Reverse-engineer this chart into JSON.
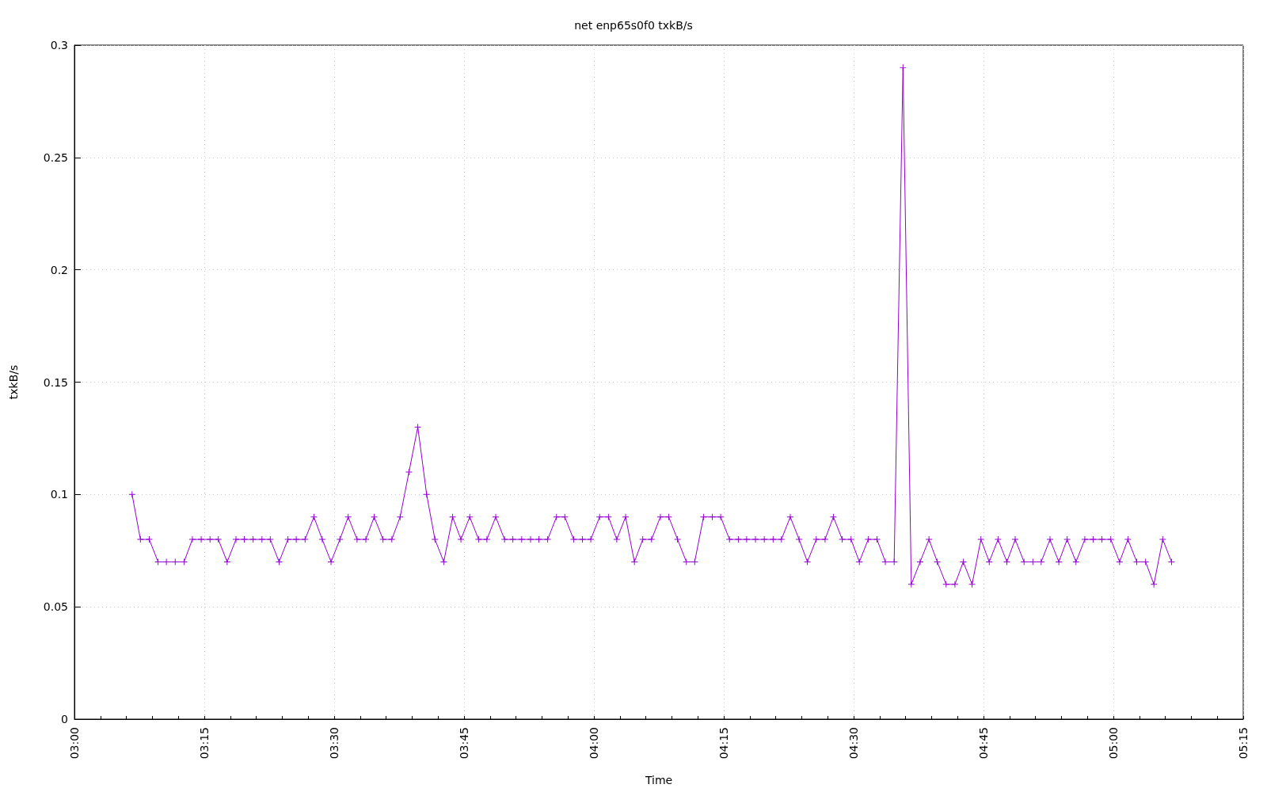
{
  "chart_data": {
    "type": "line",
    "title": "net enp65s0f0 txkB/s",
    "xlabel": "Time",
    "ylabel": "txkB/s",
    "x": [
      3.111,
      3.127,
      3.144,
      3.161,
      3.177,
      3.194,
      3.211,
      3.227,
      3.244,
      3.261,
      3.277,
      3.294,
      3.311,
      3.327,
      3.344,
      3.361,
      3.377,
      3.394,
      3.411,
      3.427,
      3.444,
      3.461,
      3.477,
      3.494,
      3.511,
      3.527,
      3.544,
      3.561,
      3.577,
      3.594,
      3.611,
      3.627,
      3.644,
      3.661,
      3.678,
      3.694,
      3.711,
      3.728,
      3.744,
      3.761,
      3.778,
      3.794,
      3.811,
      3.828,
      3.844,
      3.861,
      3.878,
      3.894,
      3.911,
      3.928,
      3.944,
      3.961,
      3.978,
      3.994,
      4.011,
      4.028,
      4.044,
      4.061,
      4.078,
      4.094,
      4.111,
      4.128,
      4.144,
      4.161,
      4.178,
      4.194,
      4.211,
      4.228,
      4.244,
      4.261,
      4.278,
      4.294,
      4.311,
      4.328,
      4.345,
      4.361,
      4.378,
      4.395,
      4.411,
      4.428,
      4.445,
      4.461,
      4.478,
      4.495,
      4.511,
      4.528,
      4.545,
      4.561,
      4.578,
      4.595,
      4.611,
      4.628,
      4.645,
      4.661,
      4.678,
      4.695,
      4.711,
      4.728,
      4.745,
      4.761,
      4.778,
      4.795,
      4.811,
      4.828,
      4.845,
      4.861,
      4.878,
      4.895,
      4.911,
      4.928,
      4.945,
      4.961,
      4.978,
      4.995,
      5.012,
      5.028,
      5.045,
      5.062,
      5.078,
      5.095,
      5.112
    ],
    "series": [
      {
        "color": "#9400d3",
        "values": [
          0.1,
          0.08,
          0.08,
          0.07,
          0.07,
          0.07,
          0.07,
          0.08,
          0.08,
          0.08,
          0.08,
          0.07,
          0.08,
          0.08,
          0.08,
          0.08,
          0.08,
          0.07,
          0.08,
          0.08,
          0.08,
          0.09,
          0.08,
          0.07,
          0.08,
          0.09,
          0.08,
          0.08,
          0.09,
          0.08,
          0.08,
          0.09,
          0.11,
          0.13,
          0.1,
          0.08,
          0.07,
          0.09,
          0.08,
          0.09,
          0.08,
          0.08,
          0.09,
          0.08,
          0.08,
          0.08,
          0.08,
          0.08,
          0.08,
          0.09,
          0.09,
          0.08,
          0.08,
          0.08,
          0.09,
          0.09,
          0.08,
          0.09,
          0.07,
          0.08,
          0.08,
          0.09,
          0.09,
          0.08,
          0.07,
          0.07,
          0.09,
          0.09,
          0.09,
          0.08,
          0.08,
          0.08,
          0.08,
          0.08,
          0.08,
          0.08,
          0.09,
          0.08,
          0.07,
          0.08,
          0.08,
          0.09,
          0.08,
          0.08,
          0.07,
          0.08,
          0.08,
          0.07,
          0.07,
          0.29,
          0.06,
          0.07,
          0.08,
          0.07,
          0.06,
          0.06,
          0.07,
          0.06,
          0.08,
          0.07,
          0.08,
          0.07,
          0.08,
          0.07,
          0.07,
          0.07,
          0.08,
          0.07,
          0.08,
          0.07,
          0.08,
          0.08,
          0.08,
          0.08,
          0.07,
          0.08,
          0.07,
          0.07,
          0.06,
          0.08,
          0.07
        ]
      }
    ],
    "xlim": [
      3,
      5.25
    ],
    "xticks": [
      {
        "value": 3,
        "label": "03:00"
      },
      {
        "value": 3.05,
        "label": null
      },
      {
        "value": 3.1,
        "label": null
      },
      {
        "value": 3.15,
        "label": null
      },
      {
        "value": 3.2,
        "label": null
      },
      {
        "value": 3.25,
        "label": "03:15"
      },
      {
        "value": 3.3,
        "label": null
      },
      {
        "value": 3.35,
        "label": null
      },
      {
        "value": 3.4,
        "label": null
      },
      {
        "value": 3.45,
        "label": null
      },
      {
        "value": 3.5,
        "label": "03:30"
      },
      {
        "value": 3.55,
        "label": null
      },
      {
        "value": 3.6,
        "label": null
      },
      {
        "value": 3.65,
        "label": null
      },
      {
        "value": 3.7,
        "label": null
      },
      {
        "value": 3.75,
        "label": "03:45"
      },
      {
        "value": 3.8,
        "label": null
      },
      {
        "value": 3.85,
        "label": null
      },
      {
        "value": 3.9,
        "label": null
      },
      {
        "value": 3.95,
        "label": null
      },
      {
        "value": 4,
        "label": "04:00"
      },
      {
        "value": 4.05,
        "label": null
      },
      {
        "value": 4.1,
        "label": null
      },
      {
        "value": 4.15,
        "label": null
      },
      {
        "value": 4.2,
        "label": null
      },
      {
        "value": 4.25,
        "label": "04:15"
      },
      {
        "value": 4.3,
        "label": null
      },
      {
        "value": 4.35,
        "label": null
      },
      {
        "value": 4.4,
        "label": null
      },
      {
        "value": 4.45,
        "label": null
      },
      {
        "value": 4.5,
        "label": "04:30"
      },
      {
        "value": 4.55,
        "label": null
      },
      {
        "value": 4.6,
        "label": null
      },
      {
        "value": 4.65,
        "label": null
      },
      {
        "value": 4.7,
        "label": null
      },
      {
        "value": 4.75,
        "label": "04:45"
      },
      {
        "value": 4.8,
        "label": null
      },
      {
        "value": 4.85,
        "label": null
      },
      {
        "value": 4.9,
        "label": null
      },
      {
        "value": 4.95,
        "label": null
      },
      {
        "value": 5,
        "label": "05:00"
      },
      {
        "value": 5.05,
        "label": null
      },
      {
        "value": 5.1,
        "label": null
      },
      {
        "value": 5.15,
        "label": null
      },
      {
        "value": 5.2,
        "label": null
      },
      {
        "value": 5.25,
        "label": "05:15"
      }
    ],
    "ylim": [
      0,
      0.3
    ],
    "yticks": [
      0,
      0.05,
      0.1,
      0.15,
      0.2,
      0.25,
      0.3
    ],
    "grid": true,
    "marker": "cross",
    "line_style": "solid"
  }
}
